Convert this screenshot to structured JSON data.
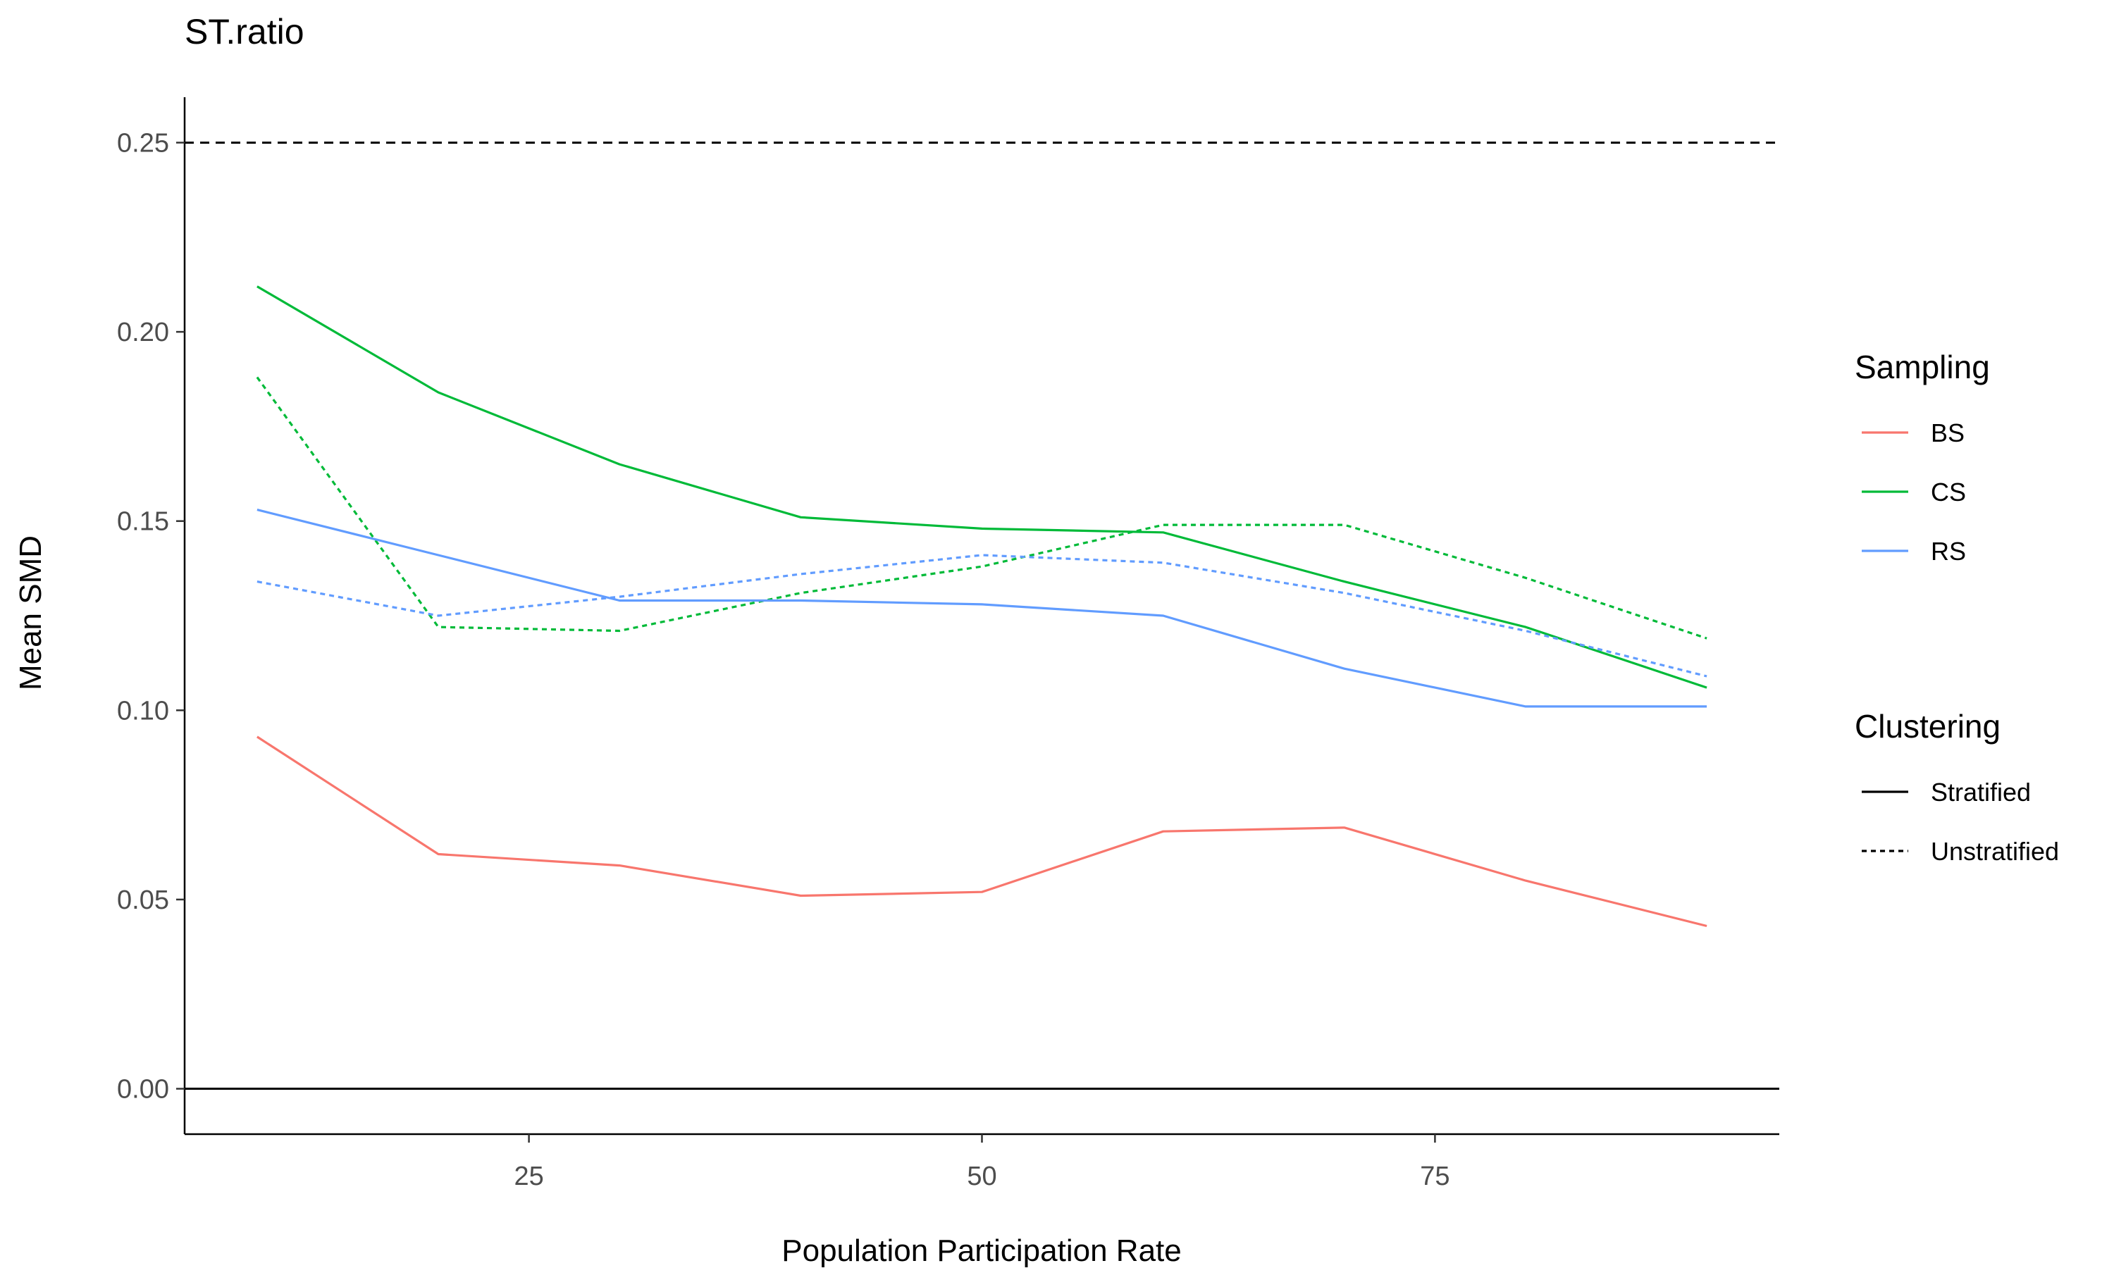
{
  "chart_data": {
    "type": "line",
    "title": "ST.ratio",
    "xlabel": "Population Participation Rate",
    "ylabel": "Mean SMD",
    "xlim": [
      6,
      94
    ],
    "ylim": [
      -0.012,
      0.262
    ],
    "xticks": [
      25,
      50,
      75
    ],
    "xtick_labels": [
      "25",
      "50",
      "75"
    ],
    "yticks": [
      0.0,
      0.05,
      0.1,
      0.15,
      0.2,
      0.25
    ],
    "ytick_labels": [
      "0.00",
      "0.05",
      "0.10",
      "0.15",
      "0.20",
      "0.25"
    ],
    "grid": false,
    "legend_position": "right",
    "x": [
      10,
      20,
      30,
      40,
      50,
      60,
      70,
      80,
      90
    ],
    "reference_lines": [
      {
        "y": 0.25,
        "style": "dashed",
        "color": "#000000"
      },
      {
        "y": 0.0,
        "style": "solid",
        "color": "#000000"
      }
    ],
    "series": [
      {
        "name": "BS",
        "clustering": "Stratified",
        "color": "#F8766D",
        "linestyle": "solid",
        "values": [
          0.093,
          0.062,
          0.059,
          0.051,
          0.052,
          0.068,
          0.069,
          0.055,
          0.043
        ]
      },
      {
        "name": "CS",
        "clustering": "Stratified",
        "color": "#00BA38",
        "linestyle": "solid",
        "values": [
          0.212,
          0.184,
          0.165,
          0.151,
          0.148,
          0.147,
          0.134,
          0.122,
          0.106
        ]
      },
      {
        "name": "CS",
        "clustering": "Unstratified",
        "color": "#00BA38",
        "linestyle": "dotted",
        "values": [
          0.188,
          0.122,
          0.121,
          0.131,
          0.138,
          0.149,
          0.149,
          0.135,
          0.119
        ]
      },
      {
        "name": "RS",
        "clustering": "Stratified",
        "color": "#619CFF",
        "linestyle": "solid",
        "values": [
          0.153,
          0.141,
          0.129,
          0.129,
          0.128,
          0.125,
          0.111,
          0.101,
          0.101
        ]
      },
      {
        "name": "RS",
        "clustering": "Unstratified",
        "color": "#619CFF",
        "linestyle": "dotted",
        "values": [
          0.134,
          0.125,
          0.13,
          0.136,
          0.141,
          0.139,
          0.131,
          0.121,
          0.109
        ]
      }
    ],
    "legends": [
      {
        "title": "Sampling",
        "items": [
          {
            "label": "BS",
            "color": "#F8766D",
            "linestyle": "solid"
          },
          {
            "label": "CS",
            "color": "#00BA38",
            "linestyle": "solid"
          },
          {
            "label": "RS",
            "color": "#619CFF",
            "linestyle": "solid"
          }
        ]
      },
      {
        "title": "Clustering",
        "items": [
          {
            "label": "Stratified",
            "color": "#000000",
            "linestyle": "solid"
          },
          {
            "label": "Unstratified",
            "color": "#000000",
            "linestyle": "dotted"
          }
        ]
      }
    ]
  }
}
